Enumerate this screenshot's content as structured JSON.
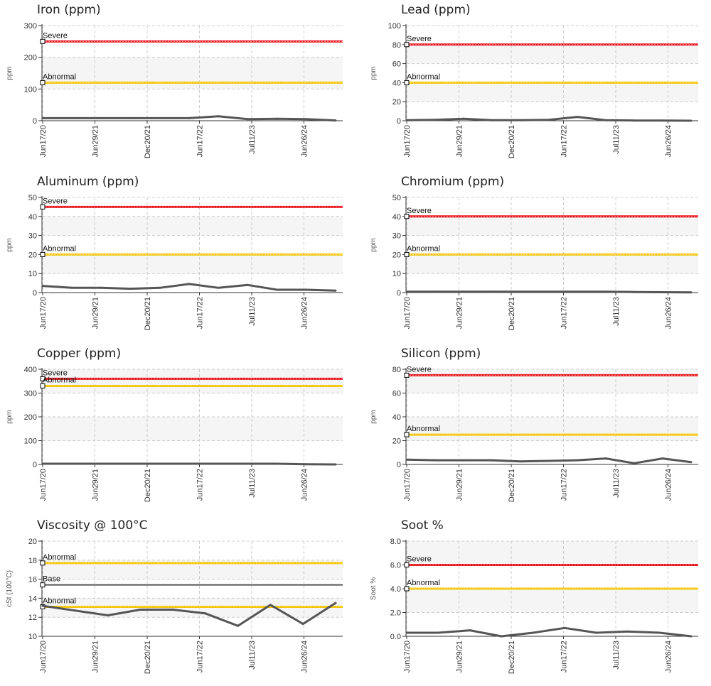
{
  "colors": {
    "severe": "#e8141c",
    "abnormal": "#f5c400",
    "base": "#555555",
    "series": "#555555",
    "grid": "#cccccc"
  },
  "chart_data": [
    {
      "type": "line",
      "title": "Iron (ppm)",
      "ylabel": "ppm",
      "ylim": [
        0,
        300
      ],
      "yticks": [
        "0",
        "100",
        "200",
        "300"
      ],
      "thresholds": [
        {
          "label": "Severe",
          "value": 250,
          "color": "severe"
        },
        {
          "label": "Abnormal",
          "value": 120,
          "color": "abnormal"
        }
      ],
      "xticks": [
        "Jun17/20",
        "Jun29/21",
        "Dec20/21",
        "Jun17/22",
        "Jul11/23",
        "Jun26/24"
      ],
      "values": [
        8,
        8,
        8,
        8,
        8,
        8,
        14,
        5,
        6,
        5,
        1
      ]
    },
    {
      "type": "line",
      "title": "Lead (ppm)",
      "ylabel": "ppm",
      "ylim": [
        0,
        100
      ],
      "yticks": [
        "0",
        "20",
        "40",
        "60",
        "80",
        "100"
      ],
      "thresholds": [
        {
          "label": "Severe",
          "value": 80,
          "color": "severe"
        },
        {
          "label": "Abnormal",
          "value": 40,
          "color": "abnormal"
        }
      ],
      "xticks": [
        "Jun17/20",
        "Jun29/21",
        "Dec20/21",
        "Jun17/22",
        "Jul11/23",
        "Jun26/24"
      ],
      "values": [
        0.5,
        1,
        2,
        0.5,
        0.5,
        1,
        4,
        0.5,
        0.2,
        0.2,
        0
      ]
    },
    {
      "type": "line",
      "title": "Aluminum (ppm)",
      "ylabel": "ppm",
      "ylim": [
        0,
        50
      ],
      "yticks": [
        "0",
        "10",
        "20",
        "30",
        "40",
        "50"
      ],
      "thresholds": [
        {
          "label": "Severe",
          "value": 45,
          "color": "severe"
        },
        {
          "label": "Abnormal",
          "value": 20,
          "color": "abnormal"
        }
      ],
      "xticks": [
        "Jun17/20",
        "Jun29/21",
        "Dec20/21",
        "Jun17/22",
        "Jul11/23",
        "Jun26/24"
      ],
      "values": [
        3.5,
        2.5,
        2.5,
        2,
        2.5,
        4.5,
        2.5,
        4,
        1.5,
        1.5,
        1
      ]
    },
    {
      "type": "line",
      "title": "Chromium (ppm)",
      "ylabel": "ppm",
      "ylim": [
        0,
        50
      ],
      "yticks": [
        "0",
        "10",
        "20",
        "30",
        "40",
        "50"
      ],
      "thresholds": [
        {
          "label": "Severe",
          "value": 40,
          "color": "severe"
        },
        {
          "label": "Abnormal",
          "value": 20,
          "color": "abnormal"
        }
      ],
      "xticks": [
        "Jun17/20",
        "Jun29/21",
        "Dec20/21",
        "Jun17/22",
        "Jul11/23",
        "Jun26/24"
      ],
      "values": [
        0.5,
        0.5,
        0.5,
        0.5,
        0.5,
        0.5,
        0.5,
        0.5,
        0.3,
        0.2,
        0.1
      ]
    },
    {
      "type": "line",
      "title": "Copper (ppm)",
      "ylabel": "ppm",
      "ylim": [
        0,
        400
      ],
      "yticks": [
        "0",
        "100",
        "200",
        "300",
        "400"
      ],
      "thresholds": [
        {
          "label": "Severe",
          "value": 360,
          "color": "severe"
        },
        {
          "label": "Abnormal",
          "value": 330,
          "color": "abnormal"
        }
      ],
      "xticks": [
        "Jun17/20",
        "Jun29/21",
        "Dec20/21",
        "Jun17/22",
        "Jul11/23",
        "Jun26/24"
      ],
      "values": [
        3,
        3,
        3,
        3,
        3,
        3,
        3,
        3,
        3,
        1,
        0
      ]
    },
    {
      "type": "line",
      "title": "Silicon (ppm)",
      "ylabel": "ppm",
      "ylim": [
        0,
        80
      ],
      "yticks": [
        "0",
        "20",
        "40",
        "60",
        "80"
      ],
      "thresholds": [
        {
          "label": "Severe",
          "value": 75,
          "color": "severe"
        },
        {
          "label": "Abnormal",
          "value": 25,
          "color": "abnormal"
        }
      ],
      "xticks": [
        "Jun17/20",
        "Jun29/21",
        "Dec20/21",
        "Jun17/22",
        "Jul11/23",
        "Jun26/24"
      ],
      "values": [
        4,
        3.5,
        3.5,
        3.5,
        2.5,
        3,
        3.5,
        5,
        1,
        5,
        2
      ]
    },
    {
      "type": "line",
      "title": "Viscosity @ 100°C",
      "ylabel": "cSt (100°C)",
      "ylim": [
        10,
        20
      ],
      "yticks": [
        "10",
        "12",
        "14",
        "16",
        "18",
        "20"
      ],
      "thresholds": [
        {
          "label": "Abnormal",
          "value": 17.7,
          "color": "abnormal"
        },
        {
          "label": "Base",
          "value": 15.4,
          "color": "base"
        },
        {
          "label": "Abnormal",
          "value": 13.1,
          "color": "abnormal"
        }
      ],
      "xticks": [
        "Jun17/20",
        "Jun29/21",
        "Dec20/21",
        "Jun17/22",
        "Jul11/23",
        "Jun26/24"
      ],
      "values": [
        13.2,
        12.7,
        12.2,
        12.8,
        12.8,
        12.4,
        11.1,
        13.3,
        11.3,
        13.5
      ]
    },
    {
      "type": "line",
      "title": "Soot %",
      "ylabel": "Soot %",
      "ylim": [
        0,
        8
      ],
      "yticks": [
        "0.0",
        "2.0",
        "4.0",
        "6.0",
        "8.0"
      ],
      "thresholds": [
        {
          "label": "Severe",
          "value": 6,
          "color": "severe"
        },
        {
          "label": "Abnormal",
          "value": 4,
          "color": "abnormal"
        }
      ],
      "xticks": [
        "Jun17/20",
        "Jun29/21",
        "Dec20/21",
        "Jun17/22",
        "Jul11/23",
        "Jun26/24"
      ],
      "values": [
        0.3,
        0.3,
        0.5,
        0.0,
        0.3,
        0.7,
        0.3,
        0.4,
        0.3,
        0.0
      ]
    }
  ]
}
